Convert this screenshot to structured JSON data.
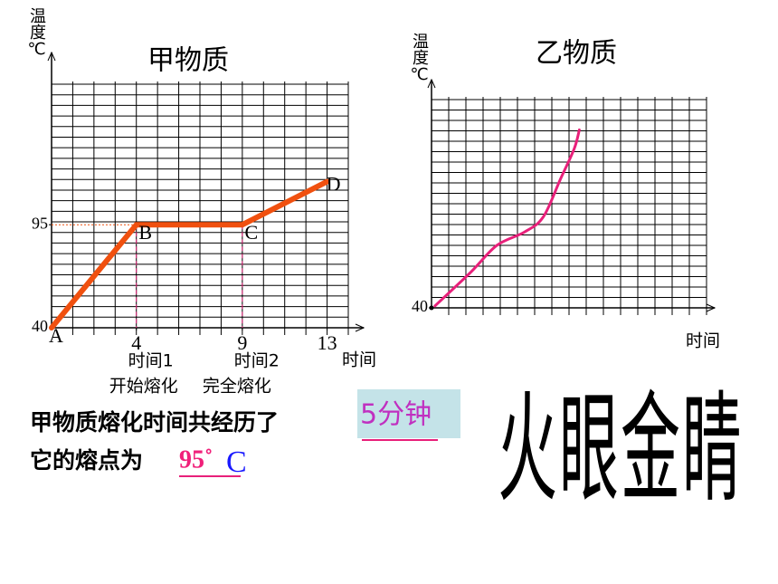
{
  "chart_data": [
    {
      "type": "line",
      "title": "甲物质",
      "y_label": "温度℃",
      "x_label": "时间",
      "x": [
        0,
        4,
        9,
        13
      ],
      "series": [
        {
          "color": "#f0500f",
          "values": [
            40,
            95,
            95,
            118
          ],
          "point_labels": [
            "A",
            "B",
            "C",
            "D"
          ]
        }
      ],
      "xlim": [
        0,
        14
      ],
      "ylim": [
        40,
        170
      ],
      "xticks": [
        4,
        9,
        13
      ],
      "yticks": [
        40,
        95
      ],
      "grid": true,
      "tick_notes": [
        {
          "x": 4,
          "lines": [
            "时间1",
            "开始熔化"
          ]
        },
        {
          "x": 9,
          "lines": [
            "时间2",
            "完全熔化"
          ]
        }
      ]
    },
    {
      "type": "line",
      "title": "乙物质",
      "y_label": "温度℃",
      "x_label": "时间",
      "x": [
        0.2,
        2.3,
        3.8,
        5.4,
        6.5,
        7.5,
        8.3,
        8.6
      ],
      "series": [
        {
          "color": "#e8207a",
          "values": [
            41,
            59,
            73,
            80,
            88,
            108,
            124,
            134
          ]
        }
      ],
      "xlim": [
        0,
        16
      ],
      "ylim": [
        40,
        150
      ],
      "xticks": [],
      "yticks": [
        40
      ],
      "grid": true,
      "curve": "smooth"
    }
  ],
  "question": {
    "line1": "甲物质熔化时间共经历了",
    "answer1": "5分钟",
    "line2": "它的熔点为",
    "answer2_value": "95˚",
    "answer2_unit": "C"
  },
  "slogan": "火眼金睛"
}
